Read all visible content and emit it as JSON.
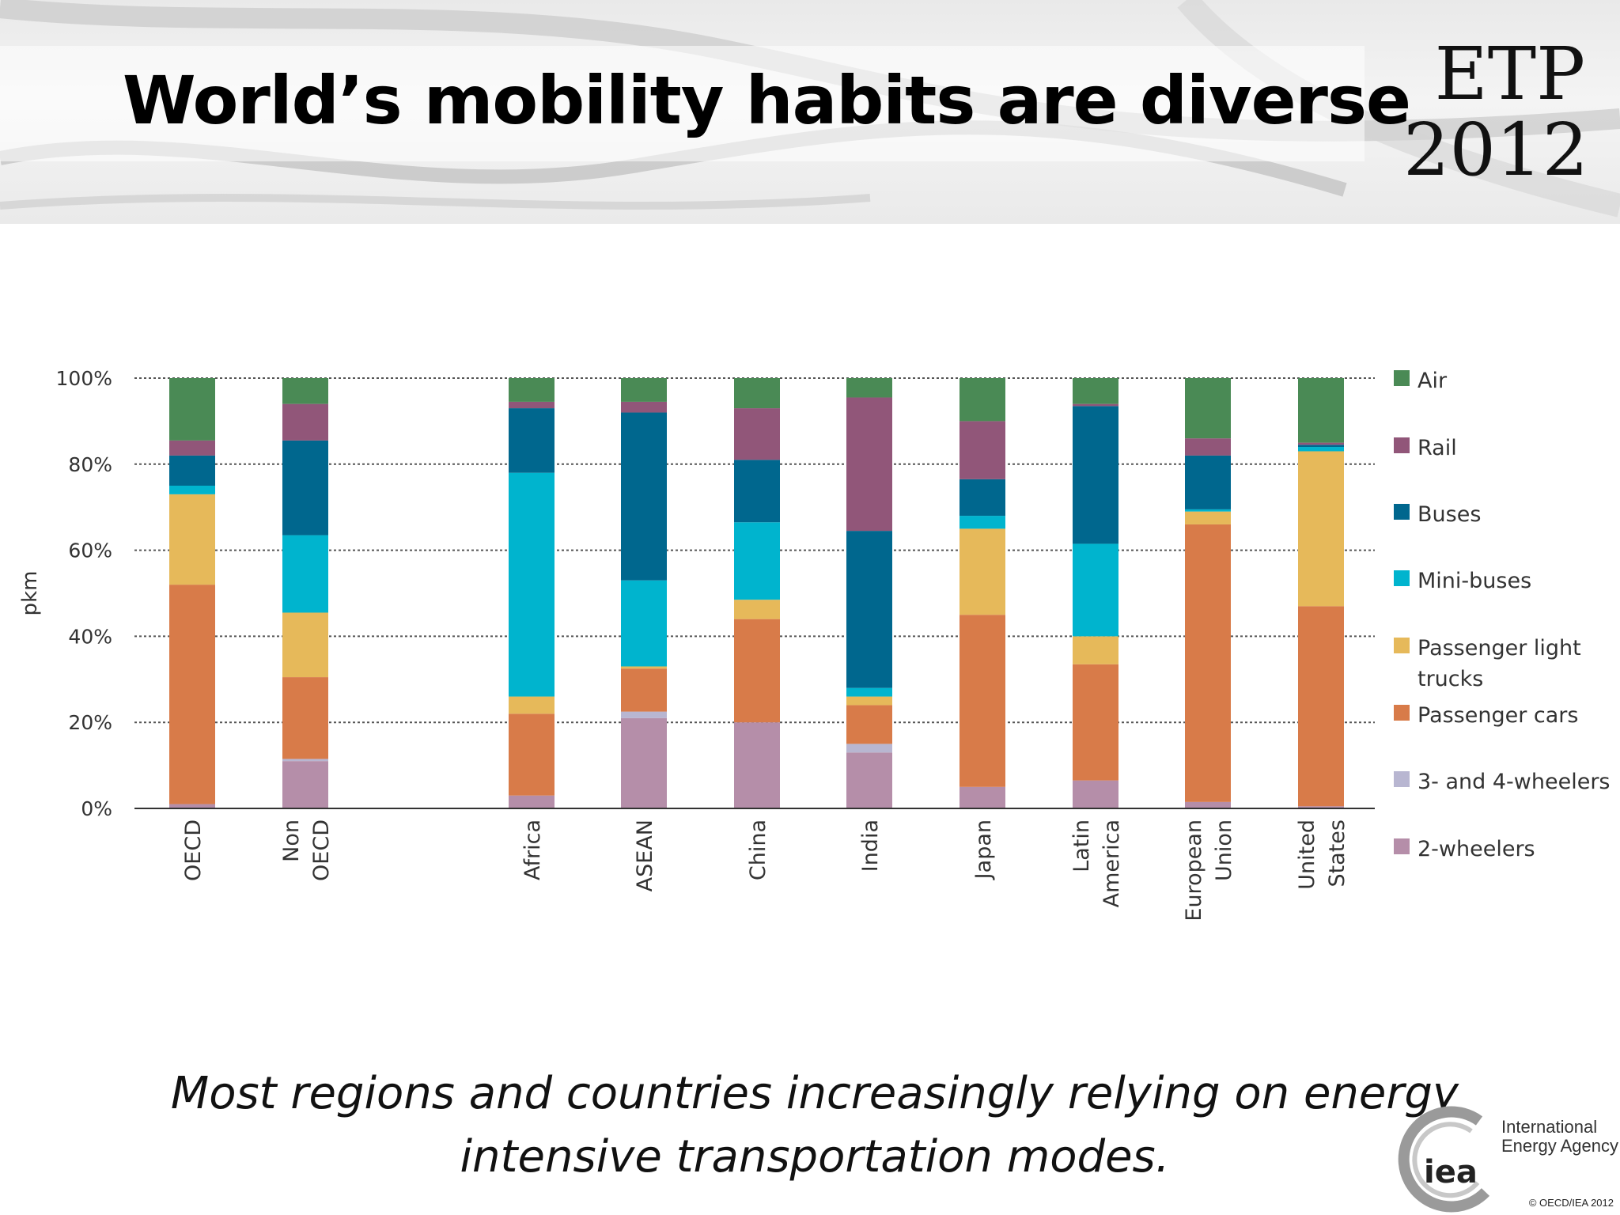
{
  "header": {
    "title": "World’s mobility habits are diverse",
    "logo_line1": "ETP",
    "logo_line2": "2012"
  },
  "chart_data": {
    "type": "bar",
    "stacked": true,
    "ylabel": "pkm",
    "y_ticks": [
      "0%",
      "20%",
      "40%",
      "60%",
      "80%",
      "100%"
    ],
    "ylim": [
      0,
      100
    ],
    "grid": "dotted horizontal",
    "legend_position": "right",
    "categories": [
      [
        "OECD"
      ],
      [
        "Non",
        "OECD"
      ],
      [
        "Africa"
      ],
      [
        "ASEAN"
      ],
      [
        "China"
      ],
      [
        "India"
      ],
      [
        "Japan"
      ],
      [
        "Latin",
        "America"
      ],
      [
        "European",
        "Union"
      ],
      [
        "United",
        "States"
      ]
    ],
    "series": [
      {
        "name": "2-wheelers",
        "color": "#b58ea9",
        "values": [
          1,
          11,
          3,
          21,
          20,
          13,
          5,
          6.5,
          1.5,
          0.5
        ]
      },
      {
        "name": "3- and 4-wheelers",
        "color": "#b8b6d1",
        "values": [
          0,
          0.5,
          0,
          1.5,
          0,
          2,
          0,
          0,
          0,
          0
        ]
      },
      {
        "name": "Passenger cars",
        "color": "#d87b49",
        "values": [
          51,
          19,
          19,
          10,
          24,
          9,
          40,
          27,
          64.5,
          46.5
        ]
      },
      {
        "name": "Passenger light trucks",
        "color": "#e6b95a",
        "values": [
          21,
          15,
          4,
          0.5,
          4.5,
          2,
          20,
          6.5,
          3,
          36
        ]
      },
      {
        "name": "Mini-buses",
        "color": "#00b4ce",
        "values": [
          2,
          18,
          52,
          20,
          18,
          2,
          3,
          21.5,
          0.5,
          1
        ]
      },
      {
        "name": "Buses",
        "color": "#00678e",
        "values": [
          7,
          22,
          15,
          39,
          14.5,
          36.5,
          8.5,
          32,
          12.5,
          0.5
        ]
      },
      {
        "name": "Rail",
        "color": "#915679",
        "values": [
          3.5,
          8.5,
          1.5,
          2.5,
          12,
          31,
          13.5,
          0.5,
          4,
          0.5
        ]
      },
      {
        "name": "Air",
        "color": "#4a8a55",
        "values": [
          14.5,
          6,
          5.5,
          5.5,
          7,
          4.5,
          10,
          6,
          14,
          15
        ]
      }
    ]
  },
  "caption": {
    "line1": "Most regions and countries increasingly relying on energy",
    "line2": "intensive transportation modes."
  },
  "footer": {
    "iea_mark": "iea",
    "iea_name1": "International",
    "iea_name2": "Energy Agency",
    "copyright": "© OECD/IEA 2012"
  }
}
